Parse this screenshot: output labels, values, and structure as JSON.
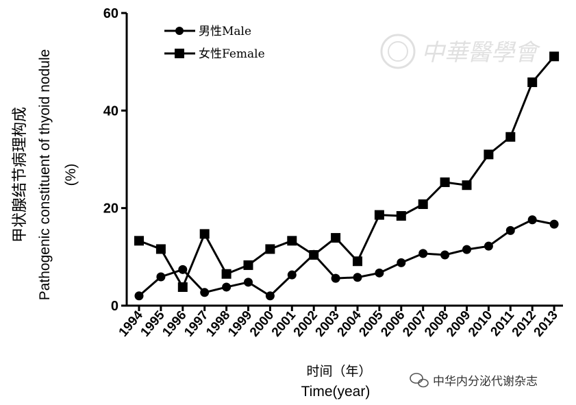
{
  "chart_data": {
    "type": "line",
    "x": [
      "1994",
      "1995",
      "1996",
      "1997",
      "1998",
      "1999",
      "2000",
      "2001",
      "2002",
      "2003",
      "2004",
      "2005",
      "2006",
      "2007",
      "2008",
      "2009",
      "2010",
      "2011",
      "2012",
      "2013"
    ],
    "series": [
      {
        "name": "男性Male",
        "marker": "circle",
        "values": [
          2.0,
          5.9,
          7.4,
          2.7,
          3.8,
          4.8,
          2.0,
          6.3,
          10.5,
          5.6,
          5.8,
          6.7,
          8.8,
          10.7,
          10.4,
          11.5,
          12.2,
          15.4,
          17.6,
          16.7
        ]
      },
      {
        "name": "女性Female",
        "marker": "square",
        "values": [
          13.3,
          11.6,
          3.8,
          14.7,
          6.5,
          8.3,
          11.6,
          13.3,
          10.4,
          13.9,
          9.1,
          18.6,
          18.4,
          20.8,
          25.3,
          24.7,
          31.0,
          34.6,
          45.8,
          51.1
        ]
      }
    ],
    "ylabel_cn": "甲状腺结节病理构成",
    "ylabel": "Pathogenic constituent of thyoid nodule",
    "ylabel_unit": "(%)",
    "xlabel_cn": "时间（年）",
    "xlabel": "Time(year)",
    "ylim": [
      0,
      60
    ],
    "yticks": [
      "0",
      "20",
      "40",
      "60"
    ],
    "grid": false,
    "legend_position": "top-left",
    "color": "#000000"
  },
  "watermark": {
    "text": "中华医学会",
    "source": "中华内分泌代谢杂志",
    "icon": "wechat-icon"
  }
}
